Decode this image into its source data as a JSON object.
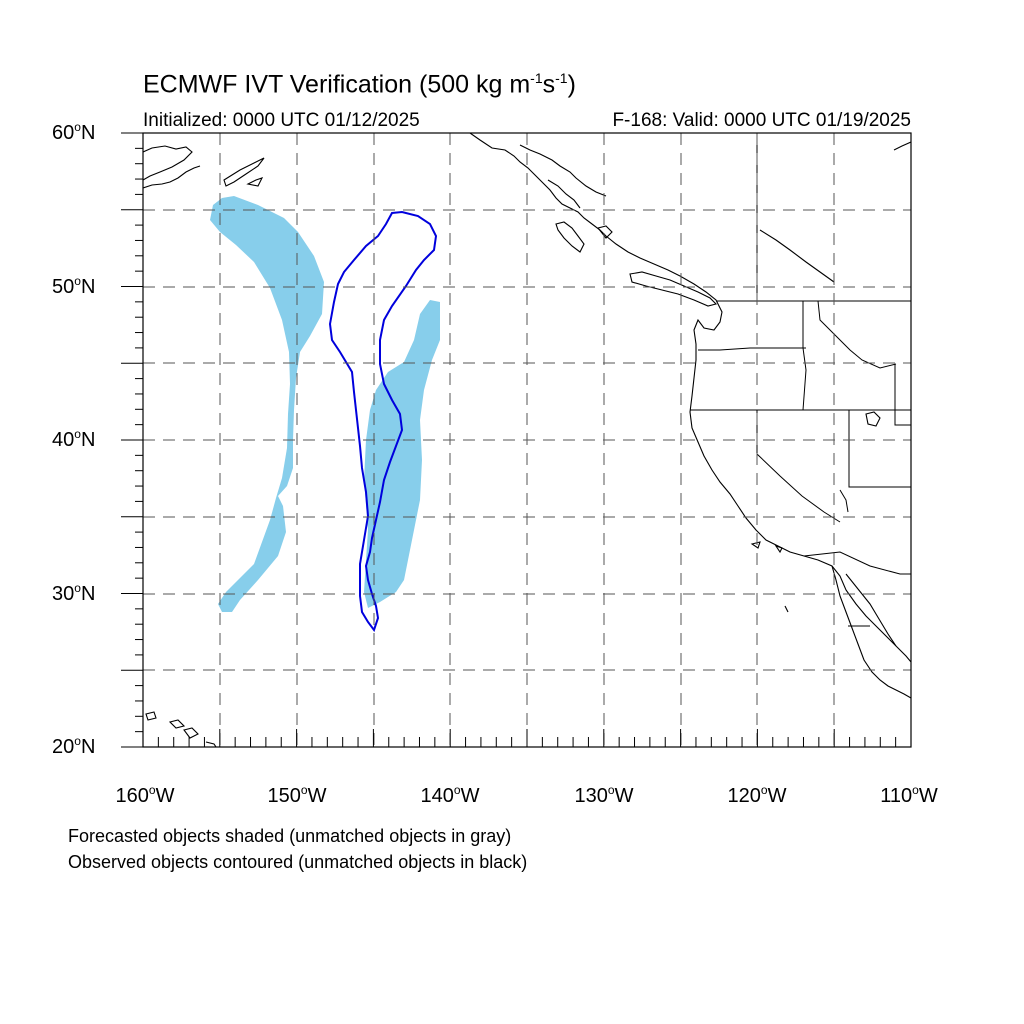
{
  "title": {
    "main": "ECMWF IVT Verification (500 kg m",
    "exp1": "-1",
    "mid": "s",
    "exp2": "-1",
    "close": ")"
  },
  "initialized": "Initialized: 0000 UTC 01/12/2025",
  "valid": "F-168: Valid: 0000 UTC 01/19/2025",
  "lat_labels": [
    {
      "num": "60",
      "deg": "o",
      "hemi": "N"
    },
    {
      "num": "50",
      "deg": "o",
      "hemi": "N"
    },
    {
      "num": "40",
      "deg": "o",
      "hemi": "N"
    },
    {
      "num": "30",
      "deg": "o",
      "hemi": "N"
    },
    {
      "num": "20",
      "deg": "o",
      "hemi": "N"
    }
  ],
  "lon_labels": [
    {
      "num": "160",
      "deg": "o",
      "hemi": "W"
    },
    {
      "num": "150",
      "deg": "o",
      "hemi": "W"
    },
    {
      "num": "140",
      "deg": "o",
      "hemi": "W"
    },
    {
      "num": "130",
      "deg": "o",
      "hemi": "W"
    },
    {
      "num": "120",
      "deg": "o",
      "hemi": "W"
    },
    {
      "num": "110",
      "deg": "o",
      "hemi": "W"
    }
  ],
  "legend": {
    "forecast": "Forecasted objects shaded (unmatched objects in gray)",
    "observed": "Observed objects contoured (unmatched objects in black)"
  },
  "colors": {
    "forecast_fill": "#87ceeb",
    "observed_contour": "#0000dd",
    "coastline": "#000000",
    "grid": "#555555"
  }
}
